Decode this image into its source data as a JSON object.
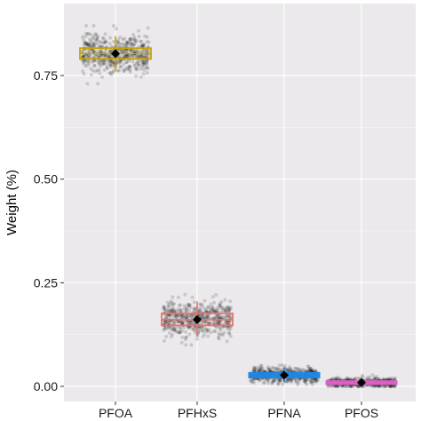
{
  "chart_data": {
    "type": "box",
    "title": "",
    "xlabel": "",
    "ylabel": "Weight (%)",
    "ylim": [
      -0.01,
      0.88
    ],
    "yticks": [
      0.0,
      0.25,
      0.5,
      0.75
    ],
    "ytick_labels": [
      "0.00",
      "0.25",
      "0.50",
      "0.75"
    ],
    "grid": true,
    "background": "#ebe9eb",
    "categories": [
      "PFOA",
      "PFHxS",
      "PFNA",
      "PFOS"
    ],
    "series": [
      {
        "category": "PFOA",
        "color": "#c9a400",
        "q1": 0.79,
        "median": 0.803,
        "q3": 0.816,
        "mean": 0.803,
        "whisker_low": 0.76,
        "whisker_high": 0.845,
        "jitter_min": 0.73,
        "jitter_max": 0.87
      },
      {
        "category": "PFHxS",
        "color": "#f0706a",
        "q1": 0.147,
        "median": 0.161,
        "q3": 0.176,
        "mean": 0.161,
        "whisker_low": 0.12,
        "whisker_high": 0.205,
        "jitter_min": 0.1,
        "jitter_max": 0.235
      },
      {
        "category": "PFNA",
        "color": "#1e88e5",
        "q1": 0.021,
        "median": 0.027,
        "q3": 0.034,
        "mean": 0.027,
        "whisker_low": 0.01,
        "whisker_high": 0.046,
        "jitter_min": 0.005,
        "jitter_max": 0.06
      },
      {
        "category": "PFOS",
        "color": "#e060c8",
        "q1": 0.005,
        "median": 0.009,
        "q3": 0.014,
        "mean": 0.009,
        "whisker_low": 0.0,
        "whisker_high": 0.022,
        "jitter_min": 0.0,
        "jitter_max": 0.032
      }
    ]
  }
}
